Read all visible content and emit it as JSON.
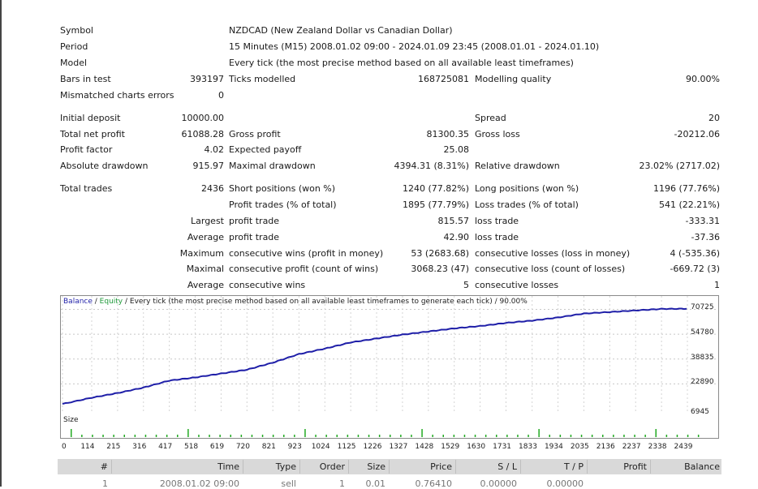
{
  "summary": {
    "symbol_label": "Symbol",
    "symbol_value": "NZDCAD (New Zealand Dollar vs Canadian Dollar)",
    "period_label": "Period",
    "period_value": "15 Minutes (M15) 2008.01.02 09:00 - 2024.01.09 23:45 (2008.01.01 - 2024.01.10)",
    "model_label": "Model",
    "model_value": "Every tick (the most precise method based on all available least timeframes)",
    "bars_label": "Bars in test",
    "bars_value": "393197",
    "ticks_label": "Ticks modelled",
    "ticks_value": "168725081",
    "quality_label": "Modelling quality",
    "quality_value": "90.00%",
    "mismatch_label": "Mismatched charts errors",
    "mismatch_value": "0",
    "deposit_label": "Initial deposit",
    "deposit_value": "10000.00",
    "spread_label": "Spread",
    "spread_value": "20",
    "net_label": "Total net profit",
    "net_value": "61088.28",
    "gross_profit_label": "Gross profit",
    "gross_profit_value": "81300.35",
    "gross_loss_label": "Gross loss",
    "gross_loss_value": "-20212.06",
    "pf_label": "Profit factor",
    "pf_value": "4.02",
    "payoff_label": "Expected payoff",
    "payoff_value": "25.08",
    "abs_dd_label": "Absolute drawdown",
    "abs_dd_value": "915.97",
    "max_dd_label": "Maximal drawdown",
    "max_dd_value": "4394.31 (8.31%)",
    "rel_dd_label": "Relative drawdown",
    "rel_dd_value": "23.02% (2717.02)",
    "trades_label": "Total trades",
    "trades_value": "2436",
    "short_label": "Short positions (won %)",
    "short_value": "1240 (77.82%)",
    "long_label": "Long positions (won %)",
    "long_value": "1196 (77.76%)",
    "pt_label": "Profit trades (% of total)",
    "pt_value": "1895 (77.79%)",
    "lt_label": "Loss trades (% of total)",
    "lt_value": "541 (22.21%)",
    "largest_label": "Largest",
    "largest_pt_label": "profit trade",
    "largest_pt_value": "815.57",
    "largest_lt_label": "loss trade",
    "largest_lt_value": "-333.31",
    "average_label": "Average",
    "average_pt_label": "profit trade",
    "average_pt_value": "42.90",
    "average_lt_label": "loss trade",
    "average_lt_value": "-37.36",
    "maximum_label": "Maximum",
    "max_cw_label": "consecutive wins (profit in money)",
    "max_cw_value": "53 (2683.68)",
    "max_cl_label": "consecutive losses (loss in money)",
    "max_cl_value": "4 (-535.36)",
    "maximal_label": "Maximal",
    "maximal_cp_label": "consecutive profit (count of wins)",
    "maximal_cp_value": "3068.23 (47)",
    "maximal_cl_label": "consecutive loss (count of losses)",
    "maximal_cl_value": "-669.72 (3)",
    "average2_label": "Average",
    "avg_cw_label": "consecutive wins",
    "avg_cw_value": "5",
    "avg_cl_label": "consecutive losses",
    "avg_cl_value": "1"
  },
  "chart": {
    "legend_balance": "Balance",
    "legend_sep": " / ",
    "legend_equity": "Equity",
    "legend_rest": " / Every tick (the most precise method based on all available least timeframes to generate each tick) / 90.00%",
    "size_label": "Size",
    "colors": {
      "balance": "#1f1fa8",
      "equity": "#1f9a3a",
      "size_bars": "#22aa22"
    }
  },
  "chart_data": {
    "type": "line",
    "series": [
      {
        "name": "Balance",
        "x": [
          0,
          114,
          215,
          316,
          417,
          518,
          619,
          720,
          821,
          923,
          1024,
          1125,
          1226,
          1327,
          1428,
          1529,
          1630,
          1731,
          1833,
          1934,
          2035,
          2136,
          2237,
          2338,
          2436
        ],
        "values": [
          10000,
          14000,
          17000,
          20500,
          25000,
          27000,
          29500,
          32000,
          36500,
          42000,
          45500,
          49500,
          52000,
          54500,
          56500,
          58500,
          60000,
          62000,
          63500,
          65500,
          68000,
          69000,
          70000,
          71000,
          71088
        ]
      }
    ],
    "y_ticks": [
      "70725",
      "54780",
      "38835",
      "22890",
      "6945"
    ],
    "x_ticks": [
      "0",
      "114",
      "215",
      "316",
      "417",
      "518",
      "619",
      "720",
      "821",
      "923",
      "1024",
      "1125",
      "1226",
      "1327",
      "1428",
      "1529",
      "1630",
      "1731",
      "1833",
      "1934",
      "2035",
      "2136",
      "2237",
      "2338",
      "2439"
    ],
    "ylim": [
      6945,
      72000
    ],
    "xlim": [
      0,
      2439
    ],
    "grid": true
  },
  "table": {
    "headers": [
      "#",
      "Time",
      "Type",
      "Order",
      "Size",
      "Price",
      "S / L",
      "T / P",
      "Profit",
      "Balance"
    ],
    "partial_row": [
      "1",
      "2008.01.02 09:00",
      "sell",
      "1",
      "0.01",
      "0.76410",
      "0.00000",
      "0.00000",
      "",
      ""
    ]
  }
}
